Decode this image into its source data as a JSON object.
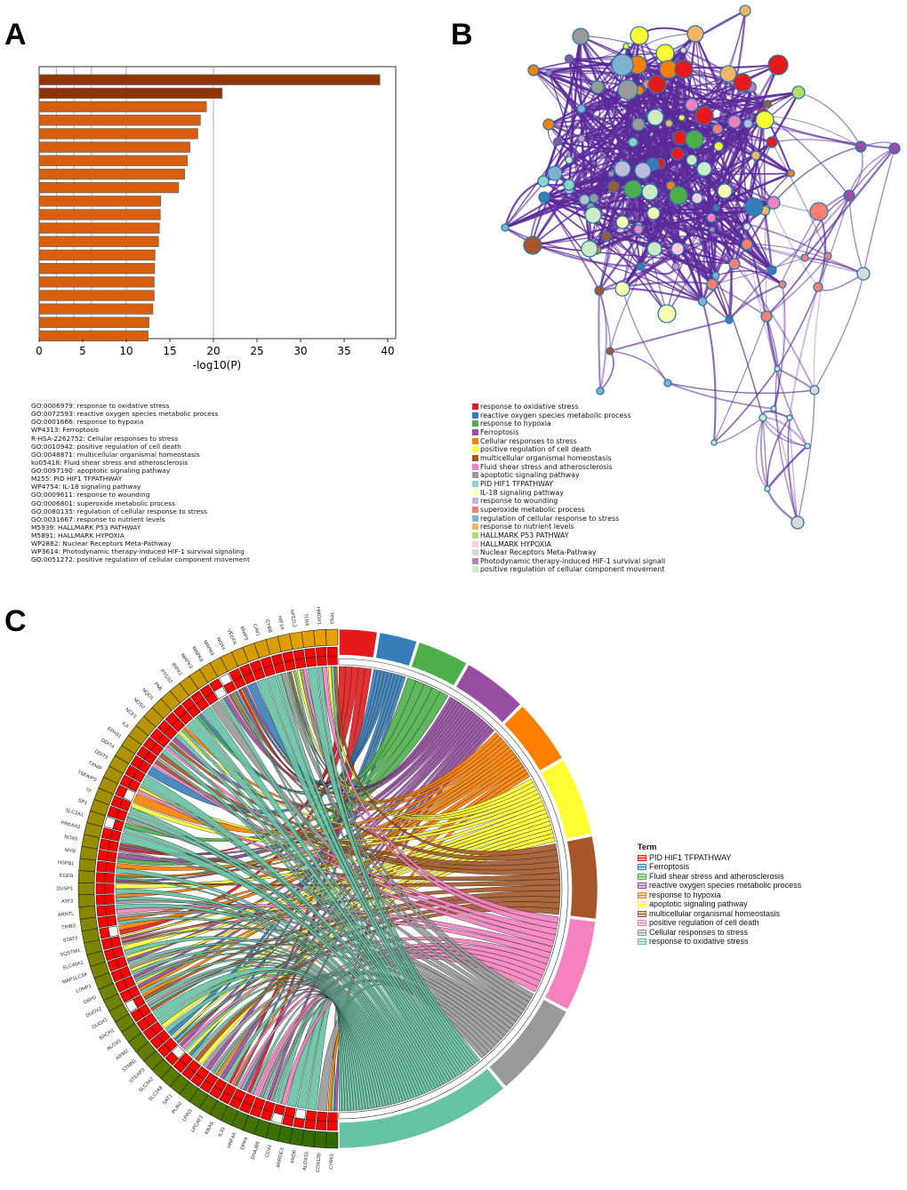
{
  "panels": {
    "a": "A",
    "b": "B",
    "c": "C"
  },
  "chart_data": {
    "type": "bar",
    "orientation": "horizontal",
    "xlabel": "-log10(P)",
    "xlim": [
      0,
      40
    ],
    "xticks": [
      "0",
      "5",
      "10",
      "15",
      "20",
      "25",
      "30",
      "35",
      "40"
    ],
    "vertical_gridlines": [
      2,
      4,
      6,
      10,
      20
    ],
    "categories": [
      "GO:0006979: response to oxidative stress",
      "GO:0072593: reactive oxygen species metabolic process",
      "GO:0001666: response to hypoxia",
      "WP4313: Ferroptosis",
      "R-HSA-2262752: Cellular responses to stress",
      "GO:0010942: positive regulation of cell death",
      "GO:0048871: multicellular organismal homeostasis",
      "ko05418: Fluid shear stress and atherosclerosis",
      "GO:0097190: apoptotic signaling pathway",
      "M255: PID HIF1 TFPATHWAY",
      "WP4754: IL-18 signaling pathway",
      "GO:0009611: response to wounding",
      "GO:0006801: superoxide metabolic process",
      "GO:0080135: regulation of cellular response to stress",
      "GO:0031667: response to nutrient levels",
      "M5939: HALLMARK P53 PATHWAY",
      "M5891: HALLMARK HYPOXIA",
      "WP2882: Nuclear Receptors Meta-Pathway",
      "WP3614: Photodynamic therapy-induced HIF-1 survival signaling",
      "GO:0051272: positive regulation of cellular component movement"
    ],
    "values": [
      39.1,
      21.0,
      19.2,
      18.5,
      18.2,
      17.3,
      17.0,
      16.7,
      16.0,
      13.95,
      13.9,
      13.8,
      13.7,
      13.3,
      13.25,
      13.2,
      13.2,
      13.05,
      12.6,
      12.5
    ],
    "colors": {
      "top": "#8f3408",
      "rest": "#d95f0e",
      "grid": "#bbbbbb"
    },
    "grid": true
  },
  "network_legend": [
    {
      "label": "response to oxidative stress",
      "color": "#e41a1c"
    },
    {
      "label": "reactive oxygen species metabolic process",
      "color": "#377eb8"
    },
    {
      "label": "response to hypoxia",
      "color": "#4daf4a"
    },
    {
      "label": "Ferroptosis",
      "color": "#984ea3"
    },
    {
      "label": "Cellular responses to stress",
      "color": "#ff7f00"
    },
    {
      "label": "positive regulation of cell death",
      "color": "#ffff33"
    },
    {
      "label": "multicellular organismal homeostasis",
      "color": "#a65628"
    },
    {
      "label": "Fluid shear stress and atherosclerosis",
      "color": "#f781bf"
    },
    {
      "label": "apoptotic signaling pathway",
      "color": "#999999"
    },
    {
      "label": "PID HIF1 TFPATHWAY",
      "color": "#8dd3c7"
    },
    {
      "label": "IL-18 signaling pathway",
      "color": "#ffffb3"
    },
    {
      "label": "response to wounding",
      "color": "#bebada"
    },
    {
      "label": "superoxide metabolic process",
      "color": "#fb8072"
    },
    {
      "label": "regulation of cellular response to stress",
      "color": "#80b1d3"
    },
    {
      "label": "response to nutrient levels",
      "color": "#fdb462"
    },
    {
      "label": "HALLMARK P53 PATHWAY",
      "color": "#b3de69"
    },
    {
      "label": "HALLMARK HYPOXIA",
      "color": "#fccde5"
    },
    {
      "label": "Nuclear Receptors Meta-Pathway",
      "color": "#d9d9d9"
    },
    {
      "label": "Photodynamic therapy-induced HIF-1 survival signali",
      "color": "#bc80bd"
    },
    {
      "label": "positive regulation of cellular component movement",
      "color": "#ccebc5"
    }
  ],
  "network_edge_color": "#5b2a9a",
  "chord": {
    "legend_title": "Term",
    "terms": [
      {
        "label": "PID HIF1 TFPATHWAY",
        "color": "#e41a1c"
      },
      {
        "label": "Ferroptosis",
        "color": "#377eb8"
      },
      {
        "label": "Fluid shear stress and atherosclerosis",
        "color": "#4daf4a"
      },
      {
        "label": "reactive oxygen species metabolic process",
        "color": "#984ea3"
      },
      {
        "label": "response to hypoxia",
        "color": "#ff7f00"
      },
      {
        "label": "apoptotic signaling pathway",
        "color": "#ffff33"
      },
      {
        "label": "multicellular organismal homeostasis",
        "color": "#a65628"
      },
      {
        "label": "positive regulation of cell death",
        "color": "#f781bf"
      },
      {
        "label": "Cellular responses to stress",
        "color": "#999999"
      },
      {
        "label": "response to oxidative stress",
        "color": "#66c2a5"
      }
    ],
    "genes": [
      "CYR61",
      "CDX12B",
      "ALOX15",
      "ANO6",
      "ARRDC3",
      "CD44",
      "DNAJB6",
      "DPP4",
      "HNF4A",
      "IL33",
      "KRAS",
      "LPCAT3",
      "LPIN1",
      "PLIN2",
      "SAT1",
      "SLC2A8",
      "SLC3A2",
      "STEAP3",
      "STMN1",
      "AIFM2",
      "ALOX5",
      "BACH1",
      "DUOX1",
      "DUOX2",
      "G6PD",
      "LONP1",
      "MAP1LC3A",
      "SLC40A1",
      "SQSTM1",
      "STAT3",
      "TRIB3",
      "ARNTL",
      "ATF3",
      "DUSP1",
      "EGFR",
      "HSPB1",
      "MYB",
      "NOX5",
      "PRKAA2",
      "SLC2A1",
      "SP1",
      "TF",
      "TNFAIP3",
      "TXNIP",
      "DDIT3",
      "DDIT4",
      "EPAS1",
      "IL6",
      "NCF2",
      "NOS2",
      "NQO1",
      "PML",
      "PTGS2",
      "RIPK1",
      "MAPK3",
      "MAPK8",
      "MAPK9",
      "NOX4",
      "VEGFA",
      "BNIP3",
      "CAV1",
      "CYBB",
      "HIF1A",
      "NFE2L2",
      "TLR4",
      "HMOX1",
      "TP53"
    ],
    "gene_ring_colors": {
      "top": "#e8a200",
      "middle": "#8c8a00",
      "bottom": "#2f6b00"
    },
    "membership_color": "#ff0000"
  }
}
